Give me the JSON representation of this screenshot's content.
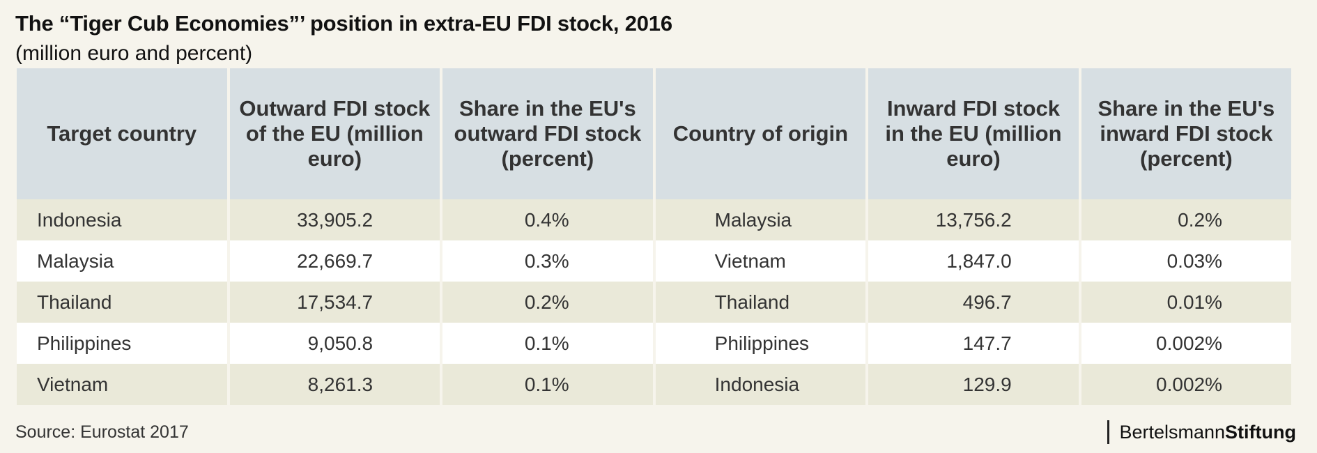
{
  "header": {
    "title": "The “Tiger Cub Economies”’ position in extra-EU FDI stock, 2016",
    "subtitle": "(million euro and percent)"
  },
  "table": {
    "columns": [
      "Target country",
      "Outward FDI stock of the EU (million euro)",
      "Share in the EU's outward FDI stock (percent)",
      "Country of origin",
      "Inward FDI stock in the EU (million euro)",
      "Share in the EU's inward FDI stock (percent)"
    ],
    "rows": [
      [
        "Indonesia",
        "33,905.2",
        "0.4%",
        "Malaysia",
        "13,756.2",
        "0.2%"
      ],
      [
        "Malaysia",
        "22,669.7",
        "0.3%",
        "Vietnam",
        "1,847.0",
        "0.03%"
      ],
      [
        "Thailand",
        "17,534.7",
        "0.2%",
        "Thailand",
        "496.7",
        "0.01%"
      ],
      [
        "Philippines",
        "9,050.8",
        "0.1%",
        "Philippines",
        "147.7",
        "0.002%"
      ],
      [
        "Vietnam",
        "8,261.3",
        "0.1%",
        "Indonesia",
        "129.9",
        "0.002%"
      ]
    ]
  },
  "footer": {
    "source": "Source: Eurostat 2017",
    "logo_part1": "Bertelsmann",
    "logo_part2": "Stiftung"
  },
  "colors": {
    "background": "#f6f4ec",
    "header_fill": "#d7dfe3",
    "row_shaded": "#eae9d9",
    "row_plain": "#ffffff"
  }
}
